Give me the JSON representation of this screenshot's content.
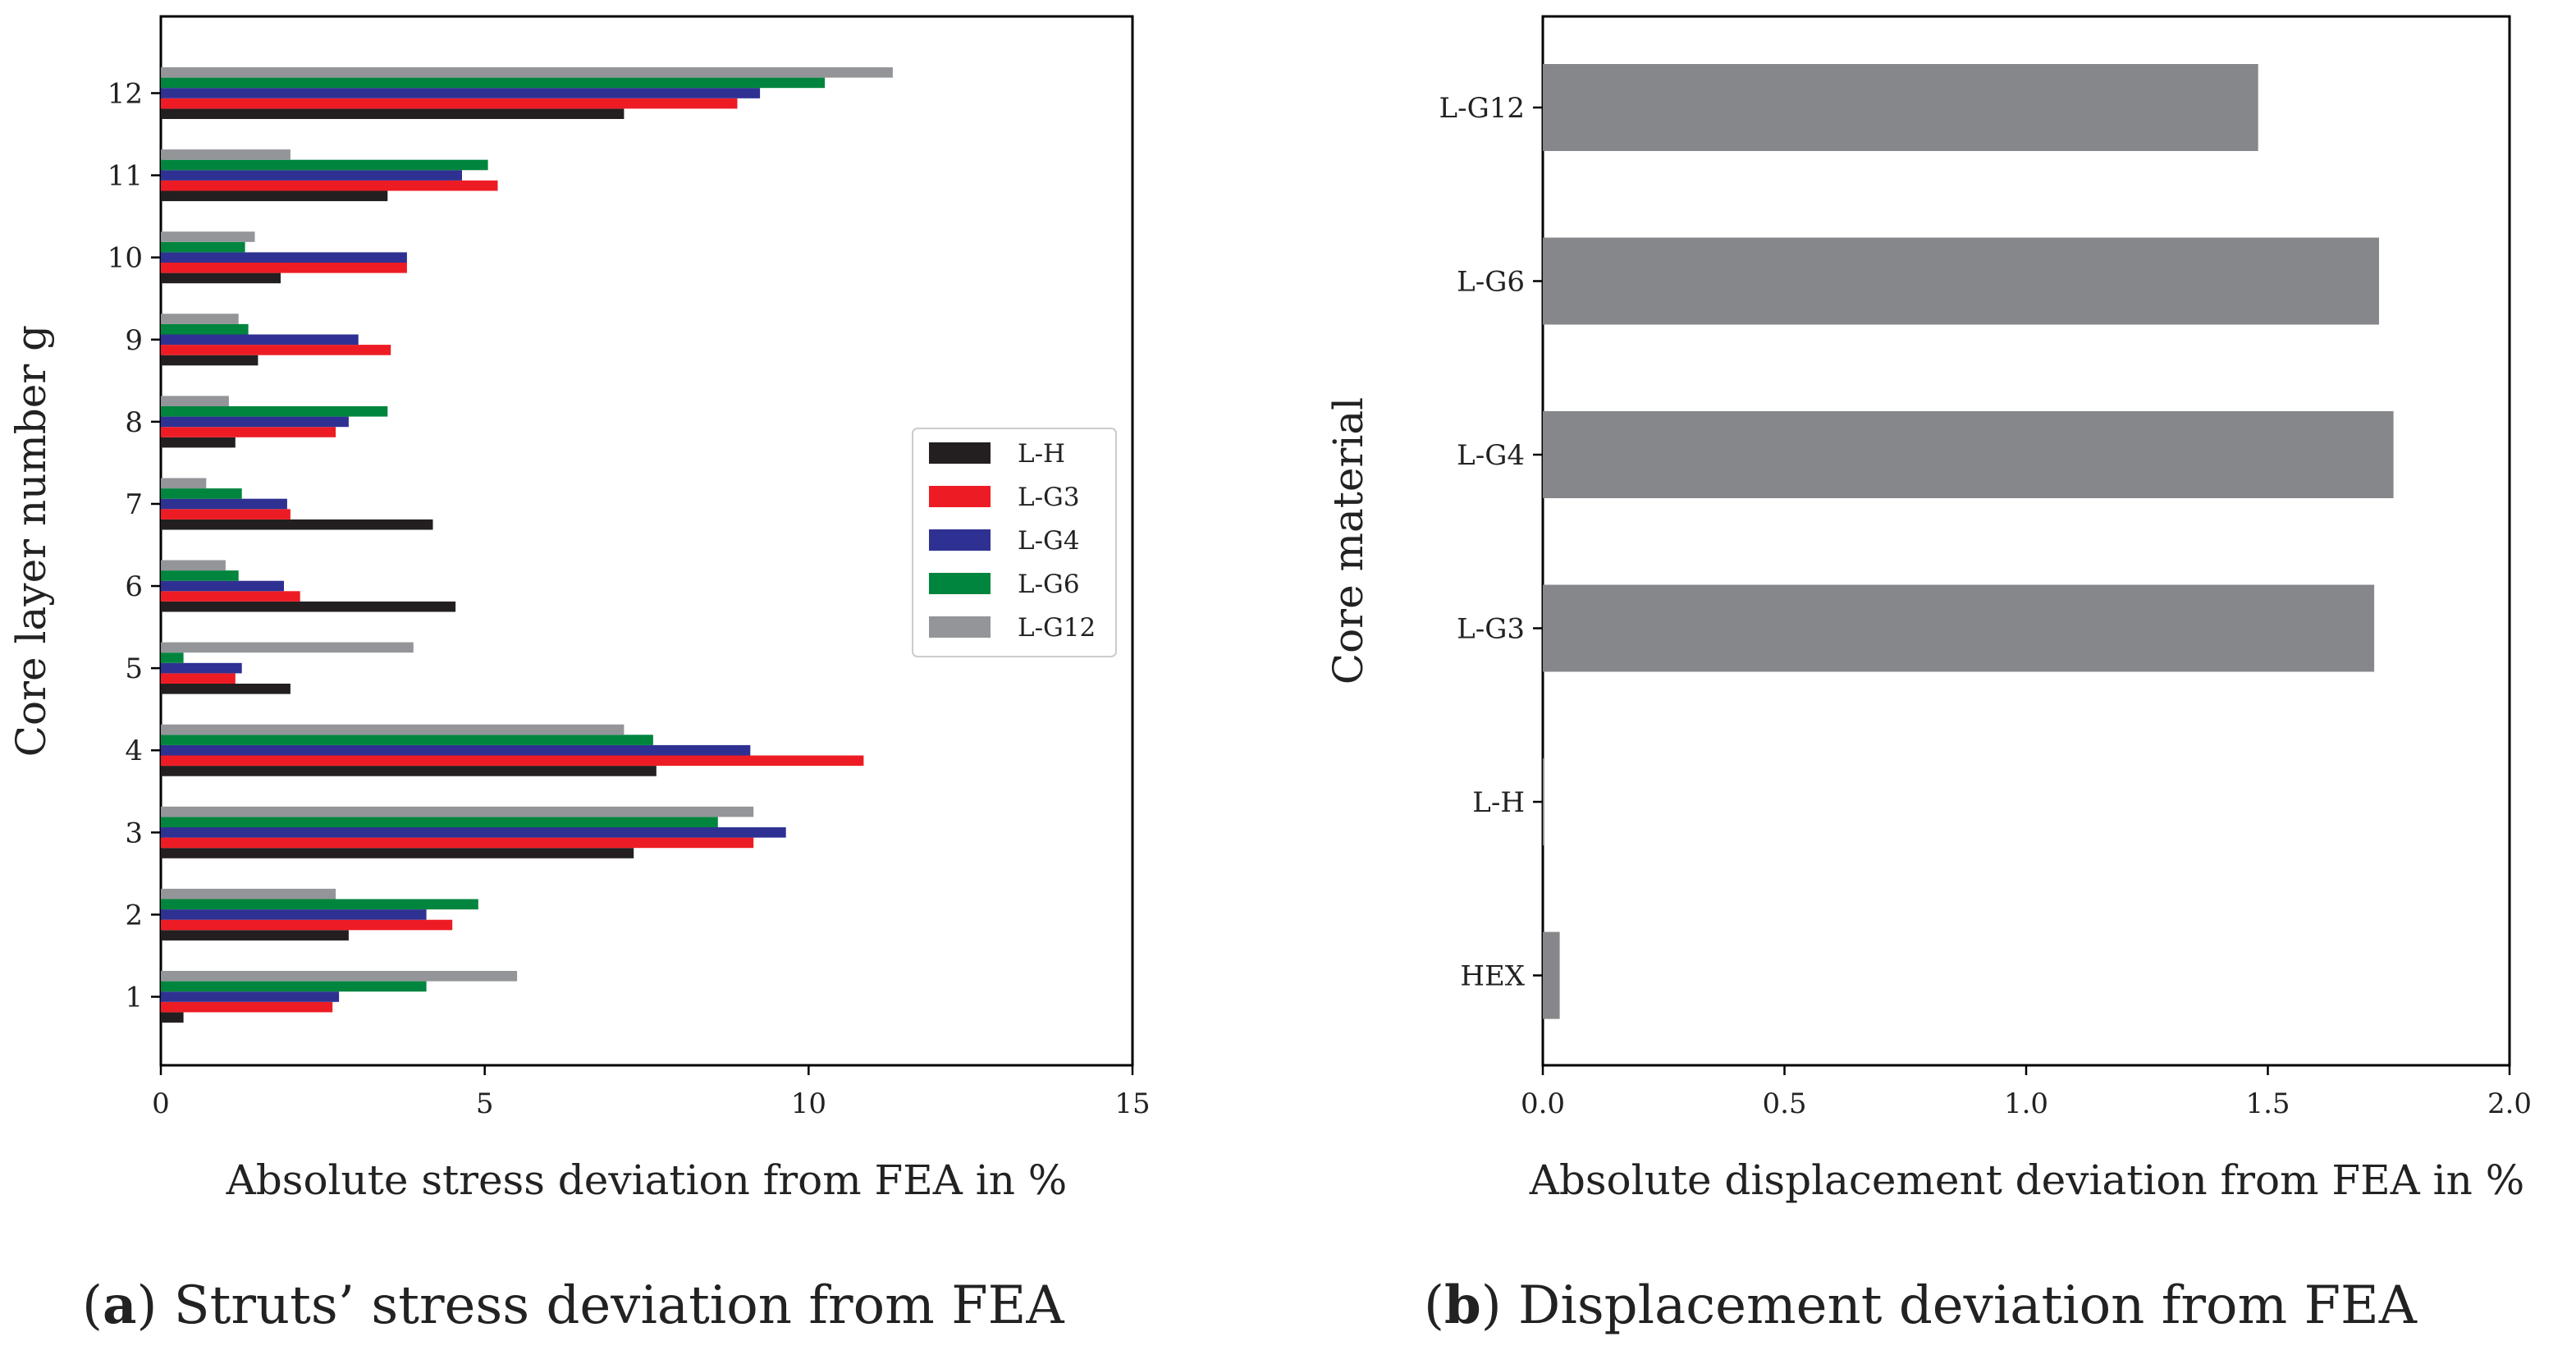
{
  "chart_data": [
    {
      "type": "bar",
      "orientation": "horizontal",
      "title": "",
      "caption_letter": "a",
      "caption_text": "Struts’ stress deviation from FEA",
      "xlabel": "Absolute stress deviation from FEA in %",
      "ylabel": "Core layer number g",
      "xlim": [
        0,
        15
      ],
      "xticks": [
        "0",
        "5",
        "10",
        "15"
      ],
      "categories": [
        "1",
        "2",
        "3",
        "4",
        "5",
        "6",
        "7",
        "8",
        "9",
        "10",
        "11",
        "12"
      ],
      "legend_position": "right",
      "series": [
        {
          "name": "L-H",
          "color": "#231f20",
          "values": [
            0.35,
            2.9,
            7.3,
            7.65,
            2.0,
            4.55,
            4.2,
            1.15,
            1.5,
            1.85,
            3.5,
            7.15
          ]
        },
        {
          "name": "L-G3",
          "color": "#ed1c24",
          "values": [
            2.65,
            4.5,
            9.15,
            10.85,
            1.15,
            2.15,
            2.0,
            2.7,
            3.55,
            3.8,
            5.2,
            8.9
          ]
        },
        {
          "name": "L-G4",
          "color": "#2e3192",
          "values": [
            2.75,
            4.1,
            9.65,
            9.1,
            1.25,
            1.9,
            1.95,
            2.9,
            3.05,
            3.8,
            4.65,
            9.25
          ]
        },
        {
          "name": "L-G6",
          "color": "#00853e",
          "values": [
            4.1,
            4.9,
            8.6,
            7.6,
            0.35,
            1.2,
            1.25,
            3.5,
            1.35,
            1.3,
            5.05,
            10.25
          ]
        },
        {
          "name": "L-G12",
          "color": "#939598",
          "values": [
            5.5,
            2.7,
            9.15,
            7.15,
            3.9,
            1.0,
            0.7,
            1.05,
            1.2,
            1.45,
            2.0,
            11.3
          ]
        }
      ]
    },
    {
      "type": "bar",
      "orientation": "horizontal",
      "title": "",
      "caption_letter": "b",
      "caption_text": "Displacement deviation from FEA",
      "xlabel": "Absolute displacement deviation from FEA in %",
      "ylabel": "Core material",
      "xlim": [
        0,
        2.0
      ],
      "xticks": [
        "0.0",
        "0.5",
        "1.0",
        "1.5",
        "2.0"
      ],
      "categories": [
        "HEX",
        "L-H",
        "L-G3",
        "L-G4",
        "L-G6",
        "L-G12"
      ],
      "color": "#86878a",
      "values": [
        0.035,
        0.002,
        1.72,
        1.76,
        1.73,
        1.48
      ]
    }
  ]
}
